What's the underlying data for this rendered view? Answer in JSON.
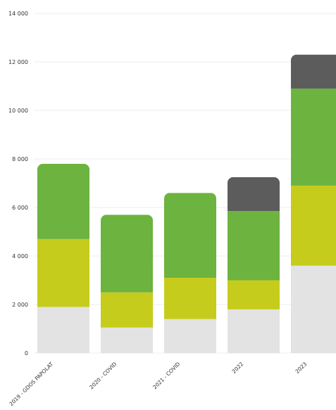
{
  "chart_data": {
    "type": "bar",
    "stacked": true,
    "categories": [
      "2019 - GDOS PAPOLAT",
      "2020 - COVID",
      "2021 - COVID",
      "2022",
      "2023"
    ],
    "series": [
      {
        "color": "#e3e3e3",
        "values": [
          1900,
          1050,
          1400,
          1800,
          3600
        ]
      },
      {
        "color": "#c6cc1b",
        "values": [
          2800,
          1450,
          1700,
          1200,
          3300
        ]
      },
      {
        "color": "#6db33f",
        "values": [
          3100,
          3200,
          3500,
          2850,
          4000
        ]
      },
      {
        "color": "#5c5c5c",
        "values": [
          0,
          0,
          0,
          1400,
          1400
        ]
      }
    ],
    "y_ticks": [
      "0",
      "2 000",
      "4 000",
      "6 000",
      "8 000",
      "10 000",
      "12 000",
      "14 000"
    ],
    "ylim": [
      0,
      14000
    ],
    "grid": true,
    "legend": "none"
  }
}
